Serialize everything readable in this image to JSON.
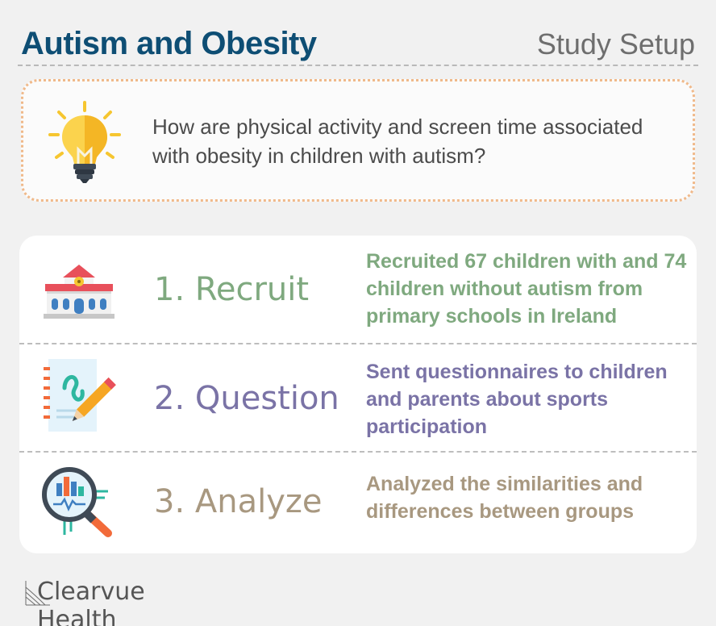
{
  "header": {
    "title": "Autism and Obesity",
    "subtitle": "Study Setup"
  },
  "question": {
    "icon": "lightbulb-icon",
    "text": "How are physical activity and screen time associated with obesity in children with autism?"
  },
  "steps": [
    {
      "label": "1. Recruit",
      "description": "Recruited 67 children with and 74 children without autism from primary schools in Ireland",
      "color": "#7fa97f",
      "icon": "school-building-icon"
    },
    {
      "label": "2. Question",
      "description": "Sent questionnaires to children and parents about sports participation",
      "color": "#7a73a6",
      "icon": "questionnaire-pencil-icon"
    },
    {
      "label": "3. Analyze",
      "description": "Analyzed the similarities and differences between groups",
      "color": "#a89880",
      "icon": "magnifier-chart-icon"
    }
  ],
  "brand": {
    "name": "Clearvue Health",
    "mark": "clearvue-logo-mark"
  },
  "colors": {
    "title": "#0e4e74",
    "question_border": "#f0b98a",
    "background": "#f1f1f1"
  }
}
